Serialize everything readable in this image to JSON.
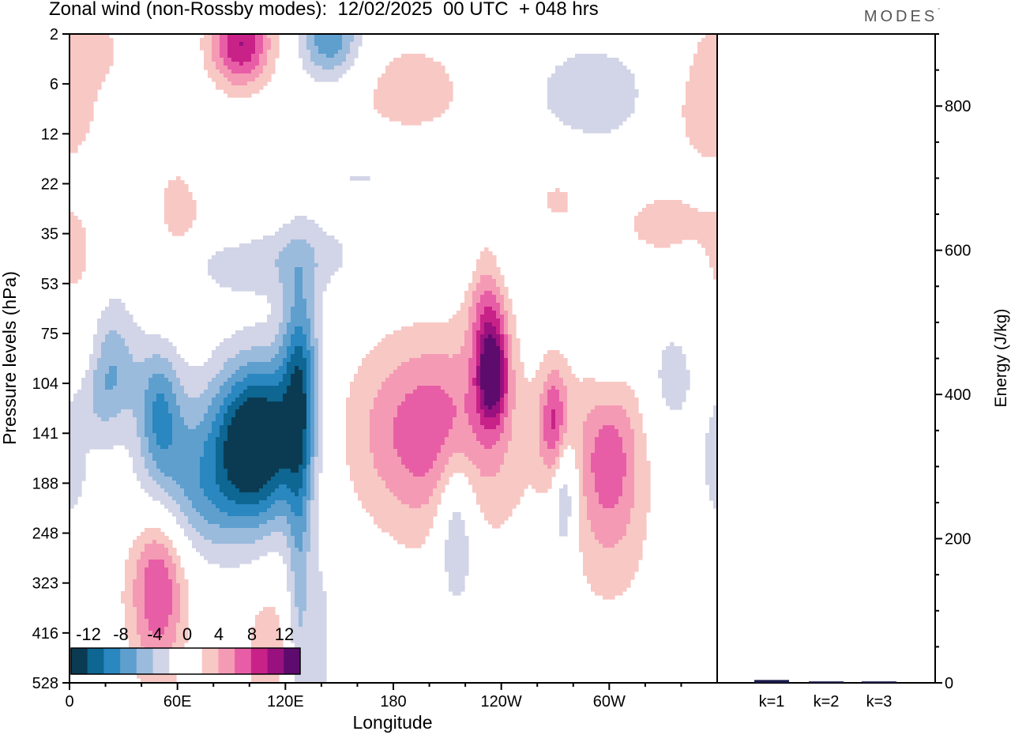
{
  "title": "Zonal wind (non-Rossby modes):  12/02/2025  00 UTC  + 048 hrs",
  "brand": "MODES",
  "brand_mark": "°",
  "colors": {
    "neg": [
      "#0b3b52",
      "#0e6693",
      "#2a87c0",
      "#5e9fce",
      "#9bbbdd",
      "#d2d4e7"
    ],
    "zero": "#ffffff",
    "pos": [
      "#f8c8c4",
      "#f59ab5",
      "#e85ea6",
      "#c82288",
      "#98117e",
      "#5d0c6e"
    ],
    "bars": "#1a1a4a"
  },
  "chart_data": [
    {
      "type": "heatmap",
      "title": "Zonal wind (non-Rossby modes):  12/02/2025  00 UTC  + 048 hrs",
      "xlabel": "Longitude",
      "ylabel": "Pressure levels (hPa)",
      "x_ticks": [
        "0",
        "60E",
        "120E",
        "180",
        "120W",
        "60W"
      ],
      "x_tick_values": [
        0,
        60,
        120,
        180,
        240,
        300
      ],
      "xlim": [
        0,
        360
      ],
      "y_ticks": [
        "2",
        "6",
        "12",
        "22",
        "35",
        "53",
        "75",
        "104",
        "141",
        "188",
        "248",
        "323",
        "416",
        "528"
      ],
      "y_scale": "pressure levels (equally spaced, top = 2 hPa)",
      "colorbar_labels": [
        "-12",
        "-8",
        "-4",
        "0",
        "4",
        "8",
        "12"
      ],
      "contour_levels": [
        -14,
        -12,
        -10,
        -8,
        -6,
        -4,
        -2,
        2,
        4,
        6,
        8,
        10,
        12,
        14
      ],
      "features": [
        {
          "sign": "negative",
          "lon": 105,
          "hPa": 141,
          "peak": -14
        },
        {
          "sign": "negative",
          "lon": 20,
          "hPa": 90,
          "peak": -8
        },
        {
          "sign": "negative",
          "lon": 145,
          "hPa": 2,
          "peak": -8
        },
        {
          "sign": "negative",
          "lon": 220,
          "hPa": 230,
          "peak": -6
        },
        {
          "sign": "positive",
          "lon": 235,
          "hPa": 90,
          "peak": 12
        },
        {
          "sign": "positive",
          "lon": 95,
          "hPa": 2,
          "peak": 10
        },
        {
          "sign": "positive",
          "lon": 50,
          "hPa": 323,
          "peak": 6
        },
        {
          "sign": "positive",
          "lon": 290,
          "hPa": 130,
          "peak": 6
        },
        {
          "sign": "positive",
          "lon": 190,
          "hPa": 130,
          "peak": 6
        }
      ]
    },
    {
      "type": "bar",
      "categories": [
        "k=1",
        "k=2",
        "k=3"
      ],
      "values": [
        4,
        2,
        2
      ],
      "ylabel": "Energy (J/kg)",
      "ylim": [
        0,
        900
      ],
      "y_ticks": [
        "0",
        "200",
        "400",
        "600",
        "800"
      ],
      "y_tick_values": [
        0,
        200,
        400,
        600,
        800
      ]
    }
  ]
}
